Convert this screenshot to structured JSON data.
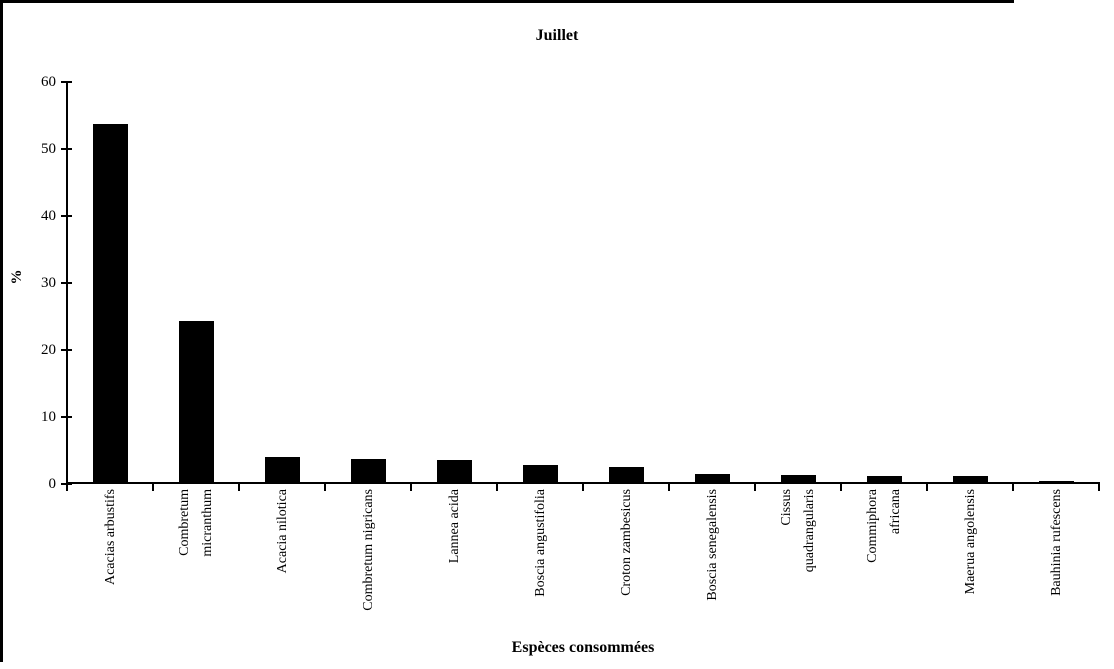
{
  "chart_data": {
    "type": "bar",
    "title": "Juillet",
    "xlabel": "Espèces consommées",
    "ylabel": "%",
    "ylim": [
      0,
      60
    ],
    "yticks": [
      0,
      10,
      20,
      30,
      40,
      50,
      60
    ],
    "grid": false,
    "legend": "none",
    "bar_color": "#000000",
    "background_color": "#ffffff",
    "categories": [
      "Acacias arbustifs",
      "Combretum\nmicranthum",
      "Acacia nilotica",
      "Combretum nigricans",
      "Lannea acida",
      "Boscia angustifolia",
      "Croton zambesicus",
      "Boscia senegalensis",
      "Cissus\nquadrangularis",
      "Commiphora\nafricana",
      "Maerua angolensis",
      "Bauhinia rufescens"
    ],
    "values": [
      53.7,
      24.2,
      4.0,
      3.7,
      3.5,
      2.8,
      2.5,
      1.4,
      1.2,
      1.1,
      1.1,
      0.3
    ]
  }
}
